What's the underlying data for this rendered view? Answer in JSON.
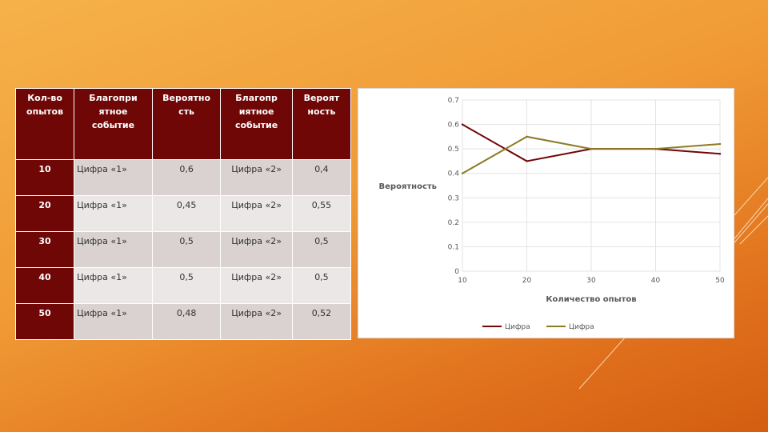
{
  "table": {
    "headers": [
      "Кол-во опытов",
      "Благопри ятное событие",
      "Вероятно сть",
      "Благопр иятное событие",
      "Вероят ность"
    ],
    "rows": [
      [
        "10",
        "Цифра «1»",
        "0,6",
        "Цифра «2»",
        "0,4"
      ],
      [
        "20",
        "Цифра «1»",
        "0,45",
        "Цифра «2»",
        "0,55"
      ],
      [
        "30",
        "Цифра «1»",
        "0,5",
        "Цифра «2»",
        "0,5"
      ],
      [
        "40",
        "Цифра «1»",
        "0,5",
        "Цифра «2»",
        "0,5"
      ],
      [
        "50",
        "Цифра «1»",
        "0,48",
        "Цифра «2»",
        "0,52"
      ]
    ]
  },
  "chart_data": {
    "type": "line",
    "x": [
      10,
      20,
      30,
      40,
      50
    ],
    "series": [
      {
        "name": "Цифра",
        "values": [
          0.6,
          0.45,
          0.5,
          0.5,
          0.48
        ],
        "color": "#6e0706"
      },
      {
        "name": "Цифра",
        "values": [
          0.4,
          0.55,
          0.5,
          0.5,
          0.52
        ],
        "color": "#8c7a22"
      }
    ],
    "xlabel": "Количество опытов",
    "ylabel": "Вероятность",
    "ylim": [
      0,
      0.7
    ],
    "yticks": [
      "0",
      "0.1",
      "0.2",
      "0.3",
      "0.4",
      "0.5",
      "0.6",
      "0.7"
    ],
    "xticks": [
      "10",
      "20",
      "30",
      "40",
      "50"
    ],
    "grid": true,
    "legend": "bottom"
  },
  "colors": {
    "header_bg": "#6e0706",
    "cell_light": "#ebe7e6",
    "cell_dark": "#d9d2d0",
    "background": "#f09a35"
  }
}
